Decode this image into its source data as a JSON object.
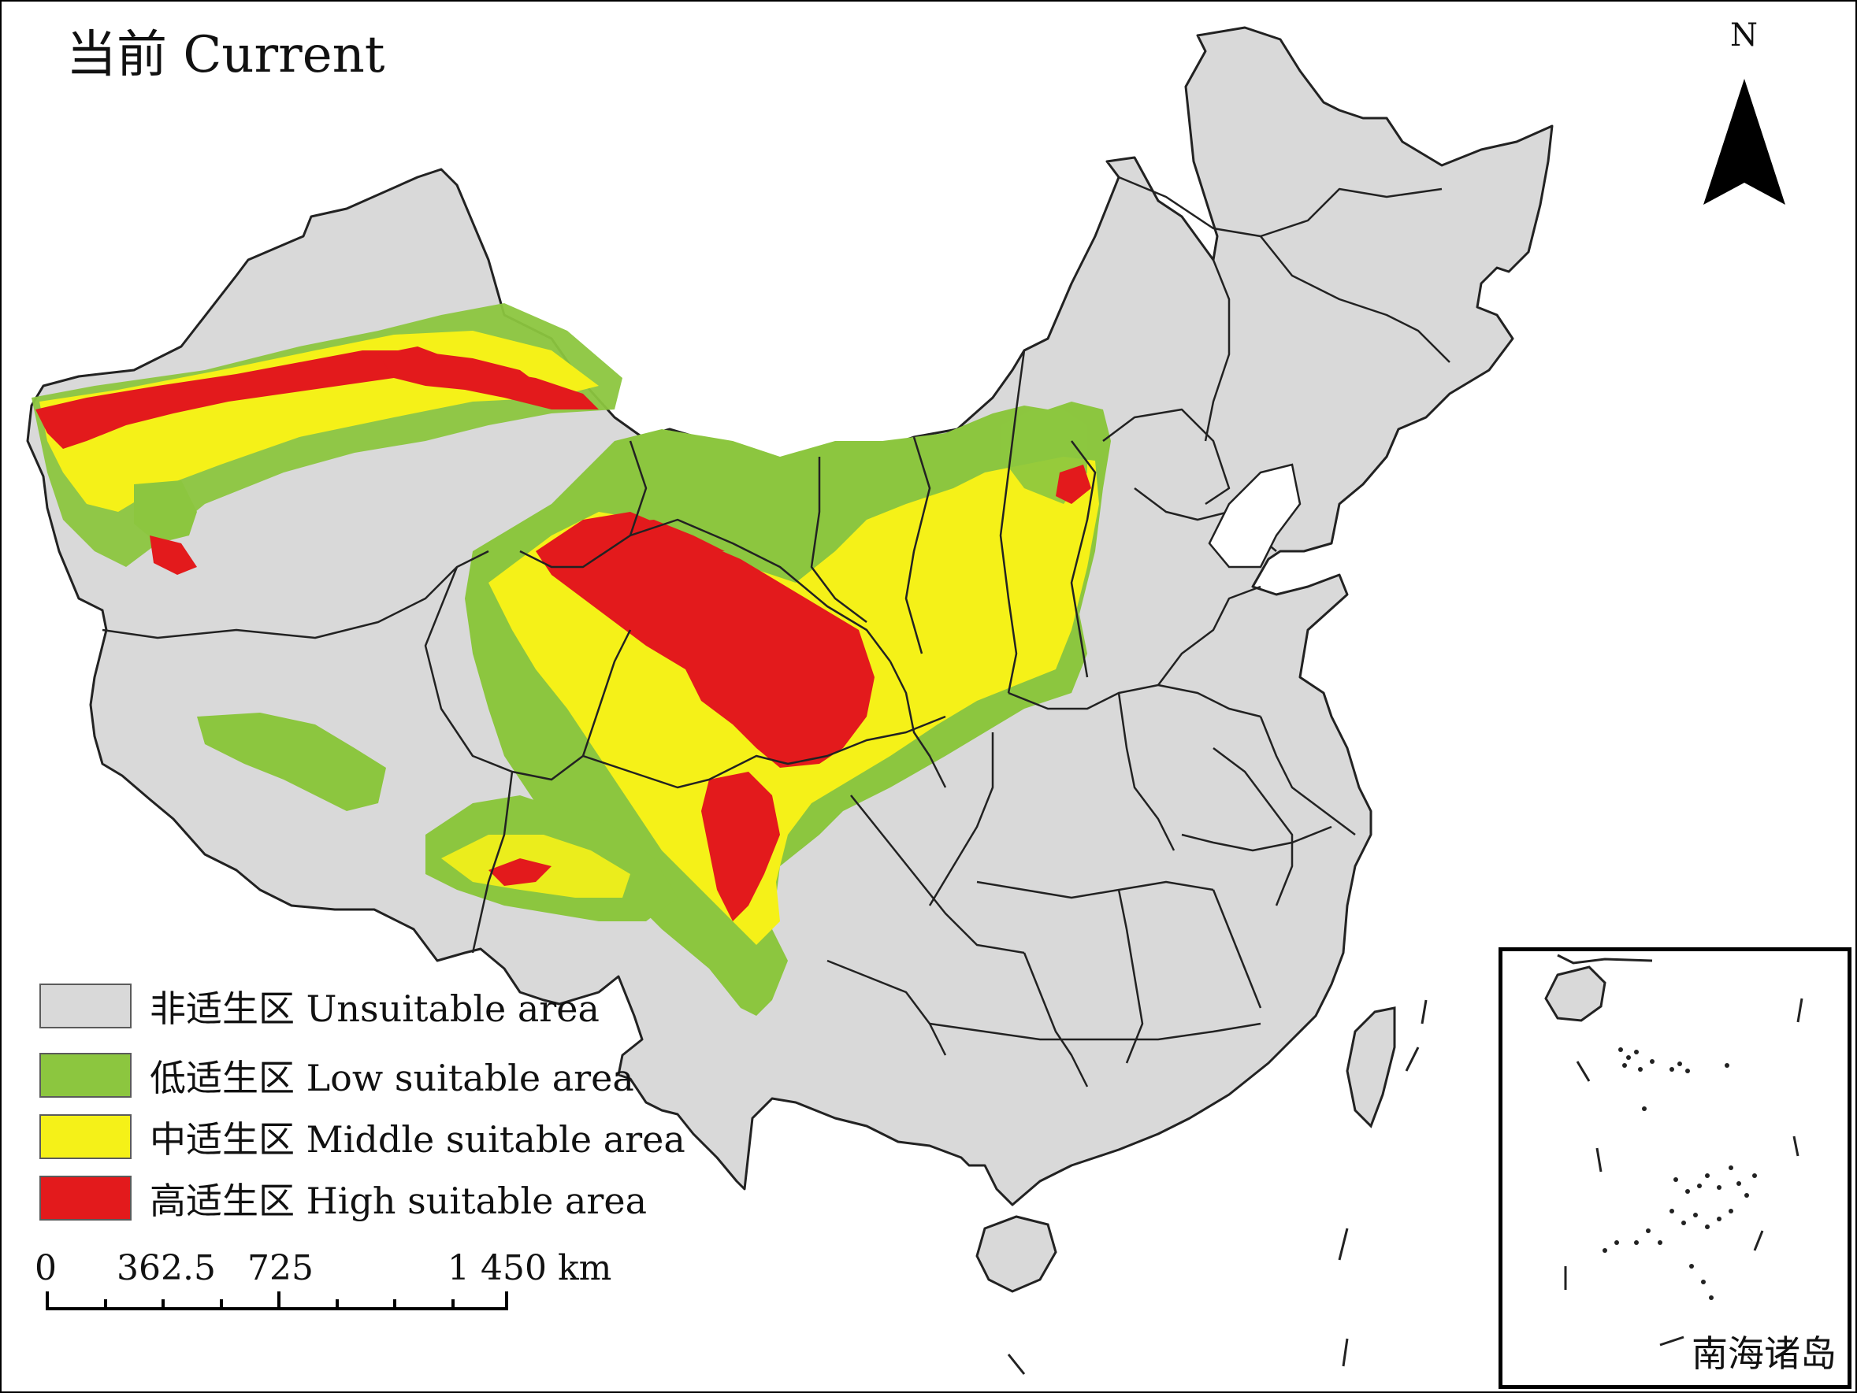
{
  "map": {
    "title": "当前 Current",
    "north_label": "N",
    "legend": [
      {
        "label": "非适生区 Unsuitable area",
        "color": "#d9d9d9"
      },
      {
        "label": "低适生区 Low suitable area",
        "color": "#8cc63f"
      },
      {
        "label": "中适生区 Middle suitable area",
        "color": "#f5f118"
      },
      {
        "label": "高适生区 High suitable area",
        "color": "#e31a1c"
      }
    ],
    "scale_bar": {
      "ticks": [
        "0",
        "362.5",
        "725",
        "1 450 km"
      ]
    },
    "inset_label": "南海诸岛",
    "colors": {
      "land": "#d9d9d9",
      "border": "#222222",
      "low": "#8cc63f",
      "middle": "#f5f118",
      "high": "#e31a1c"
    }
  }
}
